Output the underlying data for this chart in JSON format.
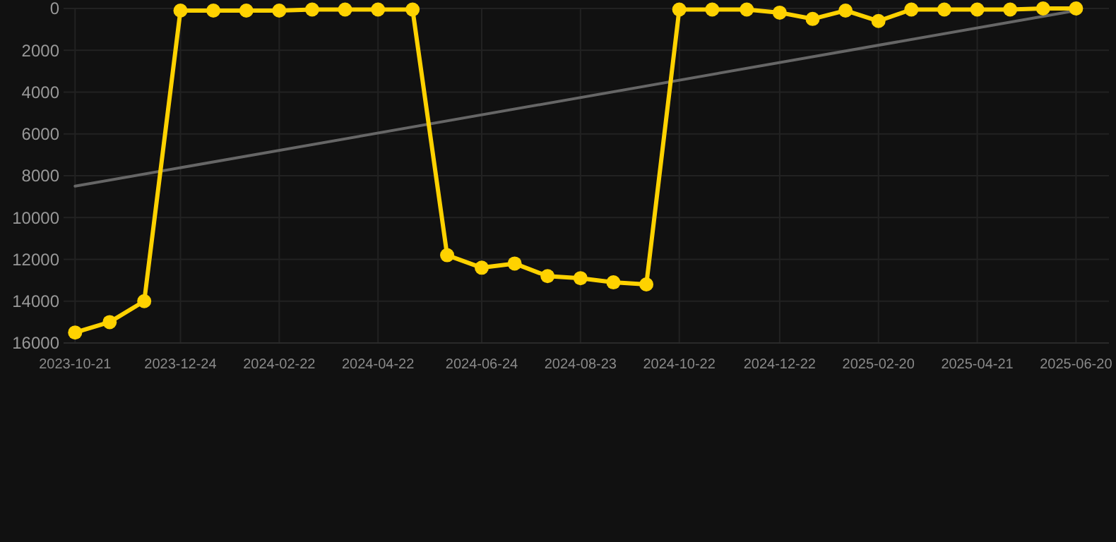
{
  "chart_data": {
    "type": "line",
    "x": [
      "2023-10-21",
      "2023-11-11",
      "2023-12-02",
      "2023-12-24",
      "2024-01-13",
      "2024-02-02",
      "2024-02-22",
      "2024-03-13",
      "2024-04-02",
      "2024-04-22",
      "2024-05-13",
      "2024-06-03",
      "2024-06-24",
      "2024-07-14",
      "2024-08-03",
      "2024-08-23",
      "2024-09-12",
      "2024-10-02",
      "2024-10-22",
      "2024-11-11",
      "2024-12-02",
      "2024-12-22",
      "2025-01-11",
      "2025-01-31",
      "2025-02-20",
      "2025-03-12",
      "2025-04-01",
      "2025-04-21",
      "2025-05-11",
      "2025-05-31",
      "2025-06-20"
    ],
    "series": [
      {
        "color": "#ffd200",
        "marker": "circle",
        "values": [
          15500,
          15000,
          14000,
          100,
          100,
          100,
          100,
          50,
          50,
          50,
          50,
          11800,
          12400,
          12200,
          12800,
          12900,
          13100,
          13200,
          50,
          50,
          50,
          200,
          500,
          100,
          600,
          50,
          50,
          50,
          50,
          0,
          0
        ]
      },
      {
        "color": "#666666",
        "marker": "none",
        "x": [
          "2023-10-21",
          "2025-06-20"
        ],
        "values": [
          8500,
          100
        ]
      }
    ],
    "xlim": [
      "2023-10-14",
      "2025-07-10"
    ],
    "xticks": [
      "2023-10-21",
      "2023-12-24",
      "2024-02-22",
      "2024-04-22",
      "2024-06-24",
      "2024-08-23",
      "2024-10-22",
      "2024-12-22",
      "2025-02-20",
      "2025-04-21",
      "2025-06-20"
    ],
    "ylim": [
      16000,
      0
    ],
    "yticks": [
      0,
      2000,
      4000,
      6000,
      8000,
      10000,
      12000,
      14000,
      16000
    ],
    "grid": true,
    "line_style": "solid"
  }
}
